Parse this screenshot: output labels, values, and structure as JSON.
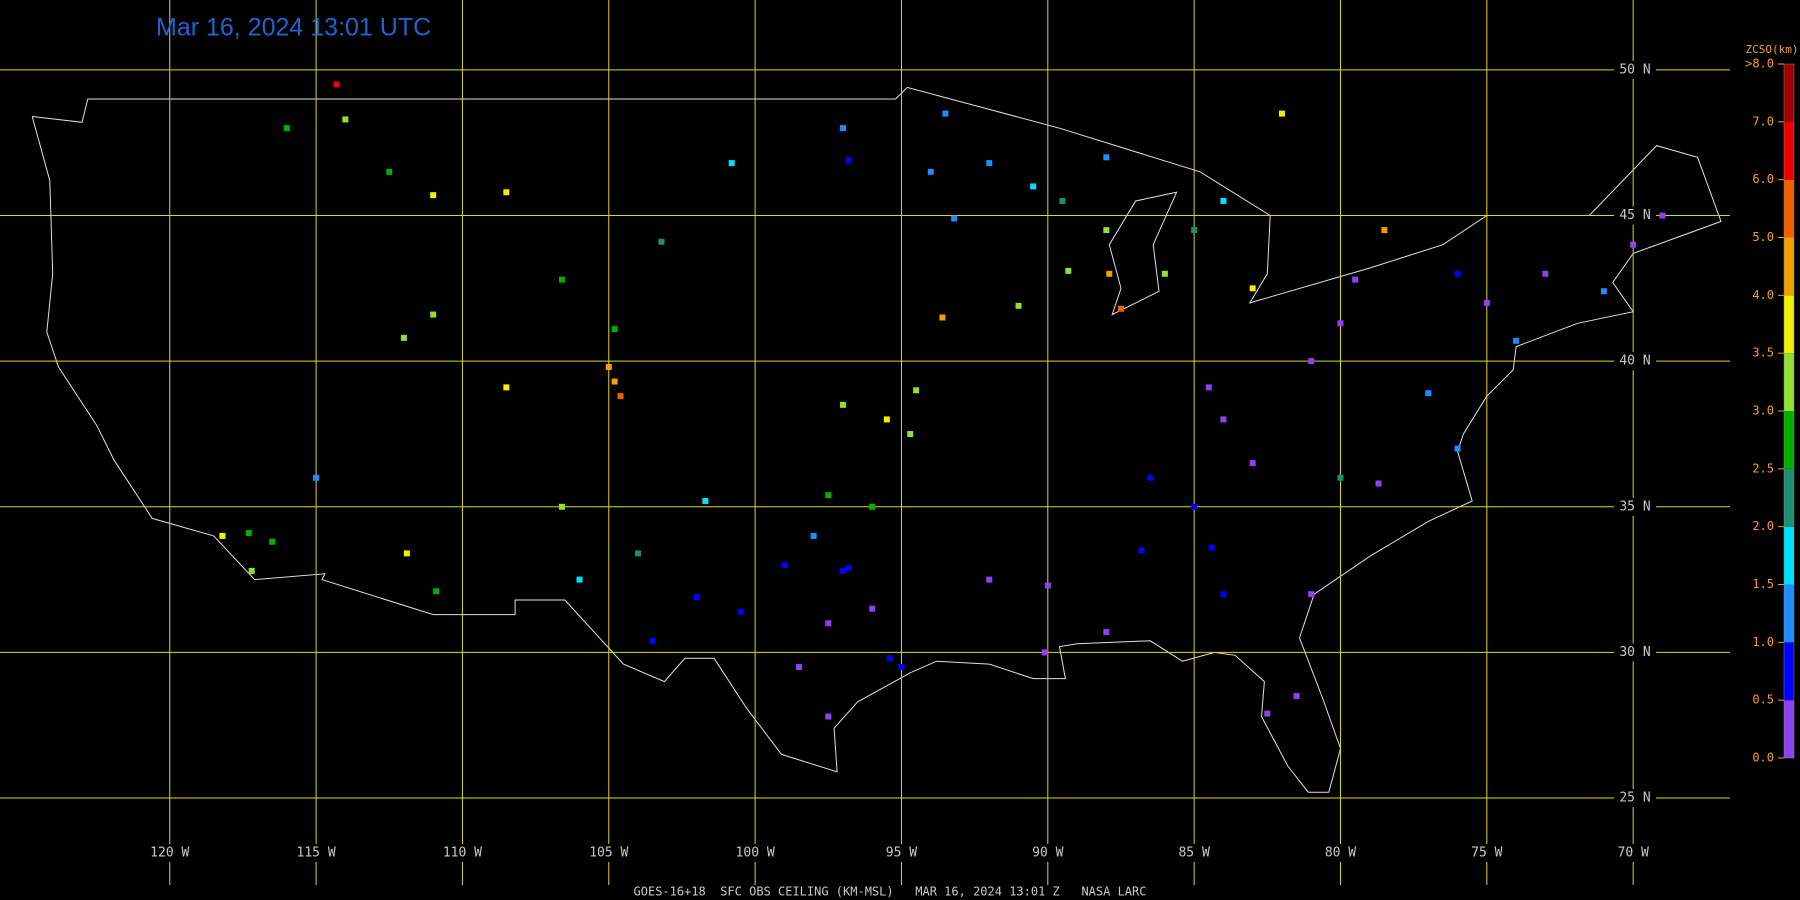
{
  "chart_data": {
    "type": "station-map",
    "title": "Mar 16, 2024 13:01 UTC",
    "caption": "GOES-16+18  SFC OBS CEILING (KM-MSL)   MAR 16, 2024 13:01 Z   NASA LARC",
    "xlim": [
      -125.8,
      -64.3
    ],
    "ylim": [
      21.5,
      52.4
    ],
    "xticks": [
      {
        "value": -120,
        "label": "120 W"
      },
      {
        "value": -115,
        "label": "115 W"
      },
      {
        "value": -110,
        "label": "110 W"
      },
      {
        "value": -105,
        "label": "105 W"
      },
      {
        "value": -100,
        "label": "100 W"
      },
      {
        "value": -95,
        "label": "95 W"
      },
      {
        "value": -90,
        "label": "90 W"
      },
      {
        "value": -85,
        "label": "85 W"
      },
      {
        "value": -80,
        "label": "80 W"
      },
      {
        "value": -75,
        "label": "75 W"
      },
      {
        "value": -70,
        "label": "70 W"
      }
    ],
    "yticks": [
      {
        "value": 50,
        "label": "50 N"
      },
      {
        "value": 45,
        "label": "45 N"
      },
      {
        "value": 40,
        "label": "40 N"
      },
      {
        "value": 35,
        "label": "35 N"
      },
      {
        "value": 30,
        "label": "30 N"
      },
      {
        "value": 25,
        "label": "25 N"
      }
    ],
    "colorbar": {
      "title": "ZCSO(km)",
      "ticks": [
        {
          "value": 0,
          "label": "0.0"
        },
        {
          "value": 0.5,
          "label": "0.5"
        },
        {
          "value": 1,
          "label": "1.0"
        },
        {
          "value": 1.5,
          "label": "1.5"
        },
        {
          "value": 2,
          "label": "2.0"
        },
        {
          "value": 2.5,
          "label": "2.5"
        },
        {
          "value": 3,
          "label": "3.0"
        },
        {
          "value": 3.5,
          "label": "3.5"
        },
        {
          "value": 4,
          "label": "4.0"
        },
        {
          "value": 5,
          "label": "5.0"
        },
        {
          "value": 6,
          "label": "6.0"
        },
        {
          "value": 7,
          "label": "7.0"
        },
        {
          "value": 8,
          "label": ">8.0"
        }
      ],
      "colors": [
        "#9040f0",
        "#0000ff",
        "#1e8cff",
        "#00e0ff",
        "#1e9070",
        "#00b000",
        "#90e030",
        "#f0f000",
        "#f0a000",
        "#f06000",
        "#f00000",
        "#a00000"
      ]
    },
    "stations": {
      "lon": [
        -97,
        -96.8,
        -97.5,
        -98.5,
        -95.4,
        -95,
        -97.5,
        -96,
        -99,
        -98,
        -97.5,
        -96,
        -94.5,
        -94.7,
        -95.5,
        -97,
        -90,
        -86.8,
        -84.4,
        -84,
        -81,
        -81.5,
        -82.5,
        -88,
        -90.1,
        -92,
        -86.5,
        -85,
        -83,
        -80,
        -78.7,
        -77,
        -76,
        -74,
        -75,
        -76,
        -73,
        -71,
        -70,
        -69,
        -79.5,
        -80,
        -81,
        -84,
        -84.5,
        -93.2,
        -94,
        -92,
        -96.8,
        -89.5,
        -88,
        -87.9,
        -89.3,
        -85,
        -84,
        -83,
        -86,
        -93.6,
        -91,
        -87.5,
        -90.5,
        -97,
        -93.5,
        -88,
        -117.2,
        -118.2,
        -117.3,
        -116.5,
        -115,
        -111.9,
        -110.9,
        -106.6,
        -104.8,
        -104.6,
        -105,
        -108.5,
        -112,
        -111,
        -108.5,
        -106.6,
        -104.8,
        -100.8,
        -103.2,
        -111,
        -112.5,
        -106,
        -104,
        -102,
        -101.7,
        -100.5,
        -103.5,
        -116,
        -114,
        -78.5,
        -82,
        -114.3
      ],
      "lat": [
        32.8,
        32.9,
        31,
        29.5,
        29.8,
        29.5,
        27.8,
        31.5,
        33,
        34,
        35.4,
        35,
        39,
        37.5,
        38,
        38.5,
        32.3,
        33.5,
        33.6,
        32,
        32,
        28.5,
        27.9,
        30.7,
        30,
        32.5,
        36,
        35,
        36.5,
        36,
        35.8,
        38.9,
        37,
        40.7,
        42,
        43,
        43,
        42.4,
        44,
        45,
        42.8,
        41.3,
        40,
        38,
        39.1,
        44.9,
        46.5,
        46.8,
        46.9,
        45.5,
        44.5,
        43,
        43.1,
        44.5,
        45.5,
        42.5,
        43,
        41.5,
        41.9,
        41.8,
        46,
        48,
        48.5,
        47,
        32.8,
        34,
        34.1,
        33.8,
        36,
        33.4,
        32.1,
        35,
        39.3,
        38.8,
        39.8,
        39.1,
        40.8,
        41.6,
        45.8,
        42.8,
        41.1,
        46.8,
        44.1,
        45.7,
        46.5,
        32.5,
        33.4,
        31.9,
        35.2,
        31.4,
        30.4,
        48,
        48.3,
        44.5,
        48.5,
        49.5
      ],
      "ceiling_km": [
        0.8,
        0.7,
        0.3,
        0.3,
        0.8,
        0.9,
        0.4,
        0.4,
        0.6,
        1.2,
        2.7,
        2.8,
        3.2,
        3.2,
        3.6,
        3.1,
        0.3,
        0.8,
        0.9,
        0.8,
        0.3,
        0.4,
        0.3,
        0.3,
        0.3,
        0.3,
        0.8,
        0.8,
        0.4,
        2.3,
        0.4,
        1.2,
        1.3,
        1.2,
        0.3,
        0.9,
        0.3,
        1.4,
        0.4,
        0.3,
        0.4,
        0.3,
        0.4,
        0.3,
        0.3,
        1.1,
        1.3,
        1.1,
        0.9,
        2.1,
        3,
        4.5,
        3.4,
        2.3,
        1.5,
        3.6,
        3.4,
        4.2,
        3.4,
        5.2,
        1.9,
        1.4,
        1,
        1.2,
        3,
        3.8,
        2.5,
        2.8,
        1.4,
        3.6,
        2.5,
        3.1,
        4.6,
        5.4,
        4.1,
        3.7,
        3.2,
        3.4,
        3.8,
        2.8,
        2.6,
        1.8,
        2.3,
        3.6,
        2.9,
        1.8,
        2.2,
        0.9,
        1.7,
        0.8,
        0.9,
        2.7,
        3.4,
        4.6,
        3.9,
        6.8
      ]
    }
  }
}
